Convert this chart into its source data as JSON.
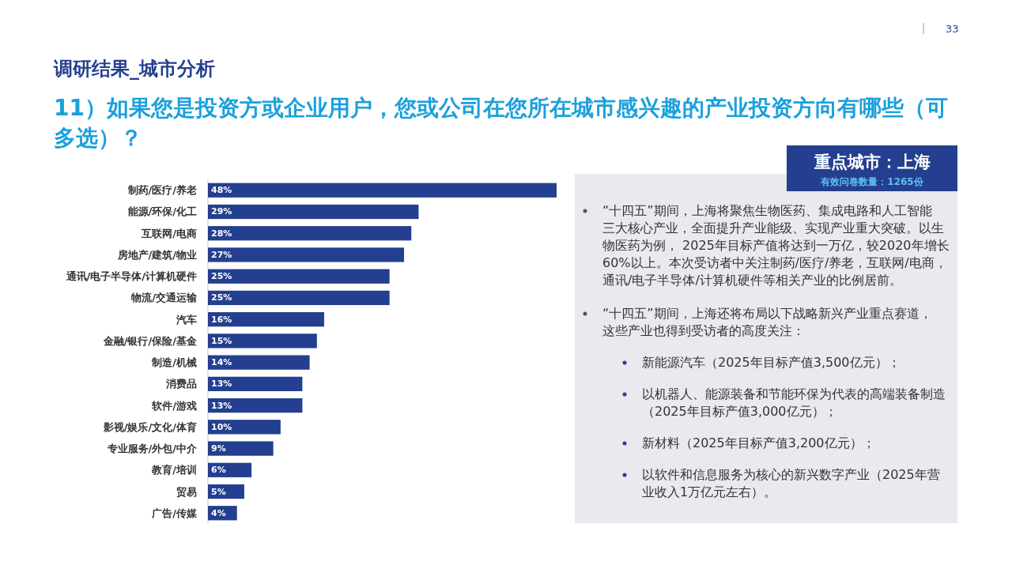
{
  "chart_data": {
    "type": "bar",
    "orientation": "horizontal",
    "title": "调研结果_城市分析",
    "subtitle": "11）如果您是投资方或企业用户，您或公司在您所在城市感兴趣的产业投资方向有哪些（可多选）？",
    "categories": [
      "制药/医疗/养老",
      "能源/环保/化工",
      "互联网/电商",
      "房地产/建筑/物业",
      "通讯/电子半导体/计算机硬件",
      "物流/交通运输",
      "汽车",
      "金融/银行/保险/基金",
      "制造/机械",
      "消费品",
      "软件/游戏",
      "影视/娱乐/文化/体育",
      "专业服务/外包/中介",
      "教育/培训",
      "贸易",
      "广告/传媒"
    ],
    "values": [
      48,
      29,
      28,
      27,
      25,
      25,
      16,
      15,
      14,
      13,
      13,
      10,
      9,
      6,
      5,
      4
    ],
    "value_labels": [
      "48%",
      "29%",
      "28%",
      "27%",
      "25%",
      "25%",
      "16%",
      "15%",
      "14%",
      "13%",
      "13%",
      "10%",
      "9%",
      "6%",
      "5%",
      "4%"
    ],
    "color": "#243f8f",
    "annotations": [
      "33",
      "重点城市：上海",
      "有效问卷数量：1265份",
      "“十四五”期间，上海将聚焦生物医药、集成电路和人工智能三大核心产业，全面提升产业能级、实现产业重大突破。以生物医药为例， 2025年目标产值将达到一万亿，较2020年增长60%以上。本次受访者中关注制药/医疗/养老，互联网/电商，通讯/电子半导体/计算机硬件等相关产业的比例居前。",
      "“十四五”期间，上海还将布局以下战略新兴产业重点赛道，这些产业也得到受访者的高度关注：",
      "新能源汽车（2025年目标产值3,500亿元）；",
      "以机器人、能源装备和节能环保为代表的高端装备制造（2025年目标产值3,000亿元）；",
      "新材料（2025年目标产值3,200亿元）；",
      "以软件和信息服务为核心的新兴数字产业（2025年营业收入1万亿元左右）。"
    ]
  }
}
